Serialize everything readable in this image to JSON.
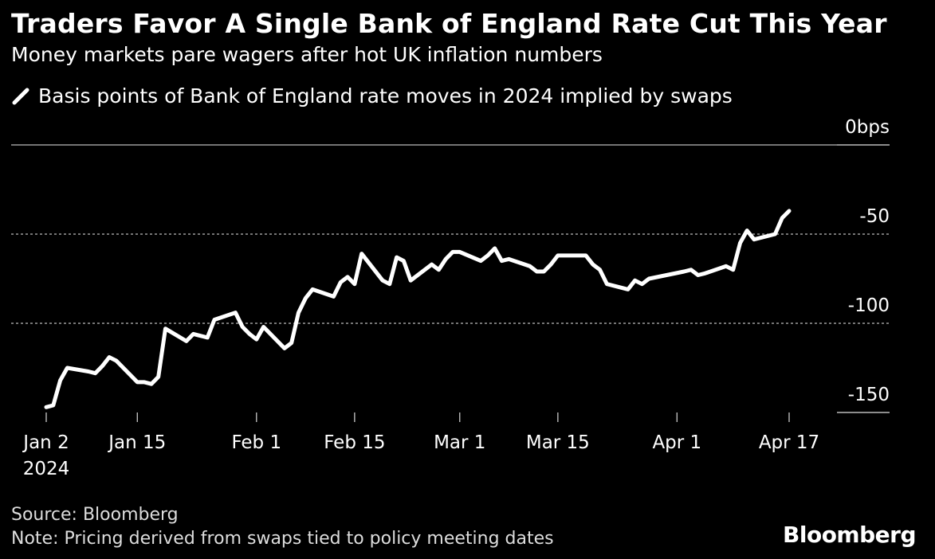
{
  "title": "Traders Favor A Single Bank of England Rate Cut This Year",
  "subtitle": "Money markets pare wagers after hot UK inflation numbers",
  "source": "Source: Bloomberg",
  "note": "Note: Pricing derived from swaps tied to policy meeting dates",
  "brand": "Bloomberg",
  "chart_data": {
    "type": "line",
    "series": [
      {
        "name": "Basis points of Bank of England rate moves in 2024 implied by swaps",
        "color": "#ffffff",
        "x": [
          "2024-01-02",
          "2024-01-03",
          "2024-01-04",
          "2024-01-05",
          "2024-01-08",
          "2024-01-09",
          "2024-01-10",
          "2024-01-11",
          "2024-01-12",
          "2024-01-15",
          "2024-01-16",
          "2024-01-17",
          "2024-01-18",
          "2024-01-19",
          "2024-01-22",
          "2024-01-23",
          "2024-01-24",
          "2024-01-25",
          "2024-01-26",
          "2024-01-29",
          "2024-01-30",
          "2024-01-31",
          "2024-02-01",
          "2024-02-02",
          "2024-02-05",
          "2024-02-06",
          "2024-02-07",
          "2024-02-08",
          "2024-02-09",
          "2024-02-12",
          "2024-02-13",
          "2024-02-14",
          "2024-02-15",
          "2024-02-16",
          "2024-02-19",
          "2024-02-20",
          "2024-02-21",
          "2024-02-22",
          "2024-02-23",
          "2024-02-26",
          "2024-02-27",
          "2024-02-28",
          "2024-02-29",
          "2024-03-01",
          "2024-03-04",
          "2024-03-05",
          "2024-03-06",
          "2024-03-07",
          "2024-03-08",
          "2024-03-11",
          "2024-03-12",
          "2024-03-13",
          "2024-03-14",
          "2024-03-15",
          "2024-03-18",
          "2024-03-19",
          "2024-03-20",
          "2024-03-21",
          "2024-03-22",
          "2024-03-25",
          "2024-03-26",
          "2024-03-27",
          "2024-03-28",
          "2024-04-02",
          "2024-04-03",
          "2024-04-04",
          "2024-04-05",
          "2024-04-08",
          "2024-04-09",
          "2024-04-10",
          "2024-04-11",
          "2024-04-12",
          "2024-04-15",
          "2024-04-16",
          "2024-04-17"
        ],
        "values": [
          -147,
          -146,
          -132,
          -125,
          -127,
          -128,
          -124,
          -119,
          -121,
          -133,
          -133,
          -134,
          -130,
          -103,
          -110,
          -106,
          -107,
          -108,
          -98,
          -94,
          -102,
          -106,
          -109,
          -102,
          -114,
          -111,
          -94,
          -86,
          -81,
          -85,
          -77,
          -74,
          -78,
          -61,
          -76,
          -78,
          -63,
          -65,
          -76,
          -67,
          -70,
          -64,
          -60,
          -60,
          -65,
          -62,
          -58,
          -65,
          -64,
          -68,
          -71,
          -71,
          -67,
          -62,
          -62,
          -62,
          -67,
          -70,
          -78,
          -81,
          -76,
          -78,
          -75,
          -71,
          -70,
          -73,
          -72,
          -68,
          -70,
          -55,
          -48,
          -53,
          -50,
          -41,
          -37
        ]
      }
    ],
    "x_ticks": [
      "Jan 2",
      "Jan 15",
      "Feb 1",
      "Feb 15",
      "Mar 1",
      "Mar 15",
      "Apr 1",
      "Apr 17"
    ],
    "x_tick_sublabel": "2024",
    "y_ticks": [
      0,
      -50,
      -100,
      -150
    ],
    "y_tick_labels": [
      "0bps",
      "-50",
      "-100",
      "-150"
    ],
    "ylim": [
      -150,
      0
    ],
    "background": "#000000"
  }
}
